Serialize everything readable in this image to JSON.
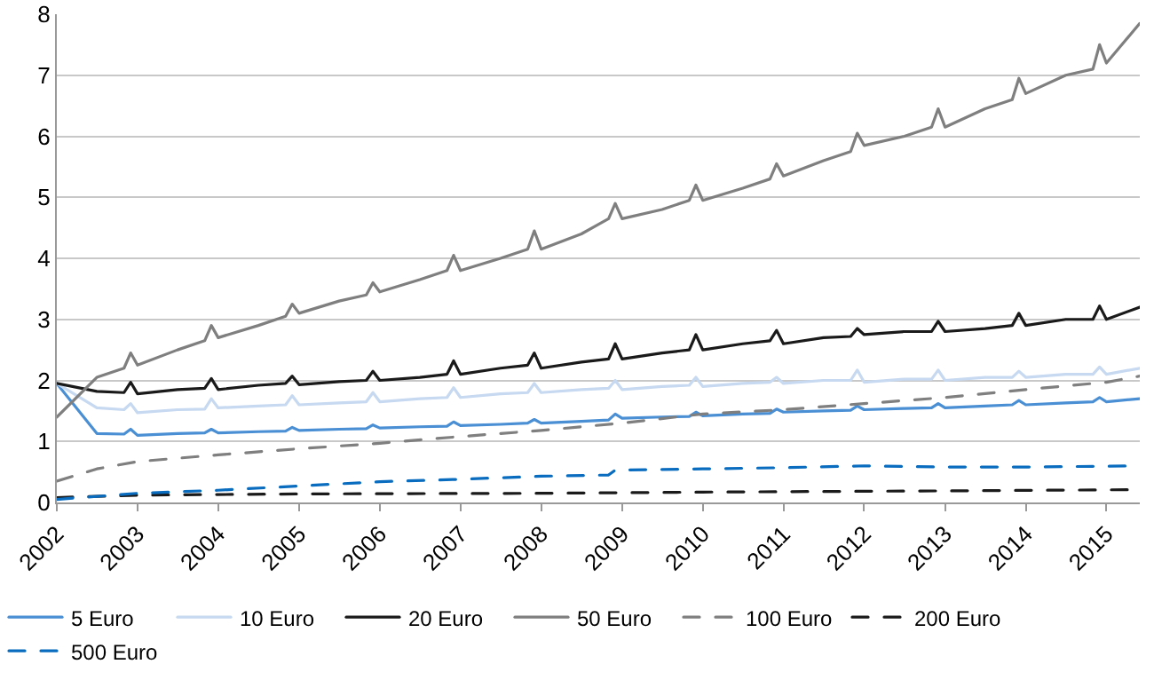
{
  "chart_data": {
    "type": "line",
    "x": [
      "2002-01",
      "2002-07",
      "2002-11",
      "2002-12",
      "2003-01",
      "2003-07",
      "2003-11",
      "2003-12",
      "2004-01",
      "2004-07",
      "2004-11",
      "2004-12",
      "2005-01",
      "2005-07",
      "2005-11",
      "2005-12",
      "2006-01",
      "2006-07",
      "2006-11",
      "2006-12",
      "2007-01",
      "2007-07",
      "2007-11",
      "2007-12",
      "2008-01",
      "2008-07",
      "2008-11",
      "2008-12",
      "2009-01",
      "2009-07",
      "2009-11",
      "2009-12",
      "2010-01",
      "2010-07",
      "2010-11",
      "2010-12",
      "2011-01",
      "2011-07",
      "2011-11",
      "2011-12",
      "2012-01",
      "2012-07",
      "2012-11",
      "2012-12",
      "2013-01",
      "2013-07",
      "2013-11",
      "2013-12",
      "2014-01",
      "2014-07",
      "2014-11",
      "2014-12",
      "2015-01",
      "2015-06"
    ],
    "xlim": [
      "2002-01",
      "2015-06"
    ],
    "xticks": [
      {
        "value": "2002-01",
        "label": "2002"
      },
      {
        "value": "2003-01",
        "label": "2003"
      },
      {
        "value": "2004-01",
        "label": "2004"
      },
      {
        "value": "2005-01",
        "label": "2005"
      },
      {
        "value": "2006-01",
        "label": "2006"
      },
      {
        "value": "2007-01",
        "label": "2007"
      },
      {
        "value": "2008-01",
        "label": "2008"
      },
      {
        "value": "2009-01",
        "label": "2009"
      },
      {
        "value": "2010-01",
        "label": "2010"
      },
      {
        "value": "2011-01",
        "label": "2011"
      },
      {
        "value": "2012-01",
        "label": "2012"
      },
      {
        "value": "2013-01",
        "label": "2013"
      },
      {
        "value": "2014-01",
        "label": "2014"
      },
      {
        "value": "2015-01",
        "label": "2015"
      }
    ],
    "ylim": [
      0,
      8
    ],
    "yticks": [
      0,
      1,
      2,
      3,
      4,
      5,
      6,
      7,
      8
    ],
    "grid": "y",
    "legend": "bottom",
    "marker": "none",
    "series": [
      {
        "name": "5 Euro",
        "color": "#4a8fd4",
        "line_style": "solid",
        "values": [
          1.95,
          1.13,
          1.12,
          1.2,
          1.1,
          1.13,
          1.14,
          1.2,
          1.14,
          1.16,
          1.17,
          1.23,
          1.18,
          1.2,
          1.21,
          1.27,
          1.22,
          1.24,
          1.25,
          1.32,
          1.26,
          1.28,
          1.3,
          1.36,
          1.3,
          1.33,
          1.35,
          1.45,
          1.38,
          1.4,
          1.41,
          1.48,
          1.42,
          1.45,
          1.46,
          1.53,
          1.48,
          1.5,
          1.51,
          1.58,
          1.52,
          1.54,
          1.55,
          1.62,
          1.55,
          1.58,
          1.6,
          1.67,
          1.6,
          1.63,
          1.65,
          1.72,
          1.65,
          1.7
        ]
      },
      {
        "name": "10 Euro",
        "color": "#c6d9f0",
        "line_style": "solid",
        "values": [
          1.95,
          1.55,
          1.52,
          1.62,
          1.47,
          1.52,
          1.53,
          1.7,
          1.55,
          1.58,
          1.6,
          1.75,
          1.6,
          1.63,
          1.65,
          1.8,
          1.65,
          1.7,
          1.72,
          1.88,
          1.72,
          1.78,
          1.8,
          1.95,
          1.8,
          1.85,
          1.87,
          2.0,
          1.85,
          1.9,
          1.92,
          2.05,
          1.9,
          1.95,
          1.97,
          2.05,
          1.95,
          2.0,
          2.0,
          2.17,
          1.97,
          2.02,
          2.02,
          2.17,
          2.0,
          2.05,
          2.05,
          2.15,
          2.05,
          2.1,
          2.1,
          2.22,
          2.1,
          2.2
        ]
      },
      {
        "name": "20 Euro",
        "color": "#1a1a1a",
        "line_style": "solid",
        "values": [
          1.95,
          1.82,
          1.8,
          1.97,
          1.78,
          1.85,
          1.87,
          2.03,
          1.85,
          1.92,
          1.95,
          2.07,
          1.93,
          1.98,
          2.0,
          2.15,
          2.0,
          2.05,
          2.1,
          2.32,
          2.1,
          2.2,
          2.25,
          2.45,
          2.2,
          2.3,
          2.35,
          2.6,
          2.35,
          2.45,
          2.5,
          2.75,
          2.5,
          2.6,
          2.65,
          2.82,
          2.6,
          2.7,
          2.72,
          2.85,
          2.75,
          2.8,
          2.8,
          2.97,
          2.8,
          2.85,
          2.9,
          3.1,
          2.9,
          3.0,
          3.0,
          3.22,
          3.0,
          3.2
        ]
      },
      {
        "name": "50 Euro",
        "color": "#7f7f7f",
        "line_style": "solid",
        "values": [
          1.4,
          2.05,
          2.2,
          2.45,
          2.25,
          2.5,
          2.65,
          2.9,
          2.7,
          2.9,
          3.05,
          3.25,
          3.1,
          3.3,
          3.4,
          3.6,
          3.45,
          3.65,
          3.8,
          4.05,
          3.8,
          4.0,
          4.15,
          4.45,
          4.15,
          4.4,
          4.65,
          4.9,
          4.65,
          4.8,
          4.95,
          5.2,
          4.95,
          5.15,
          5.3,
          5.55,
          5.35,
          5.6,
          5.75,
          6.05,
          5.85,
          6.0,
          6.15,
          6.45,
          6.15,
          6.45,
          6.6,
          6.95,
          6.7,
          7.0,
          7.1,
          7.5,
          7.2,
          7.85
        ]
      },
      {
        "name": "100 Euro",
        "color": "#7f7f7f",
        "line_style": "dashed",
        "x": [
          "2002-01",
          "2002-07",
          "2003-01",
          "2004-01",
          "2005-01",
          "2006-01",
          "2007-01",
          "2008-01",
          "2009-01",
          "2010-01",
          "2011-01",
          "2012-01",
          "2013-01",
          "2014-01",
          "2015-01",
          "2015-06"
        ],
        "values": [
          0.35,
          0.55,
          0.67,
          0.78,
          0.88,
          0.97,
          1.08,
          1.18,
          1.3,
          1.45,
          1.52,
          1.62,
          1.72,
          1.85,
          1.97,
          2.07
        ]
      },
      {
        "name": "200 Euro",
        "color": "#1a1a1a",
        "line_style": "dashed",
        "x": [
          "2002-01",
          "2003-01",
          "2005-01",
          "2008-01",
          "2010-01",
          "2013-01",
          "2015-06"
        ],
        "values": [
          0.08,
          0.12,
          0.14,
          0.15,
          0.17,
          0.19,
          0.21
        ]
      },
      {
        "name": "500 Euro",
        "color": "#0a6cbf",
        "line_style": "dashed",
        "x": [
          "2002-01",
          "2003-01",
          "2004-01",
          "2005-01",
          "2006-01",
          "2007-01",
          "2008-01",
          "2008-11",
          "2008-12",
          "2010-01",
          "2011-01",
          "2012-01",
          "2013-01",
          "2014-01",
          "2015-06"
        ],
        "values": [
          0.05,
          0.15,
          0.2,
          0.27,
          0.34,
          0.38,
          0.43,
          0.45,
          0.53,
          0.55,
          0.57,
          0.6,
          0.58,
          0.58,
          0.6
        ]
      }
    ]
  }
}
